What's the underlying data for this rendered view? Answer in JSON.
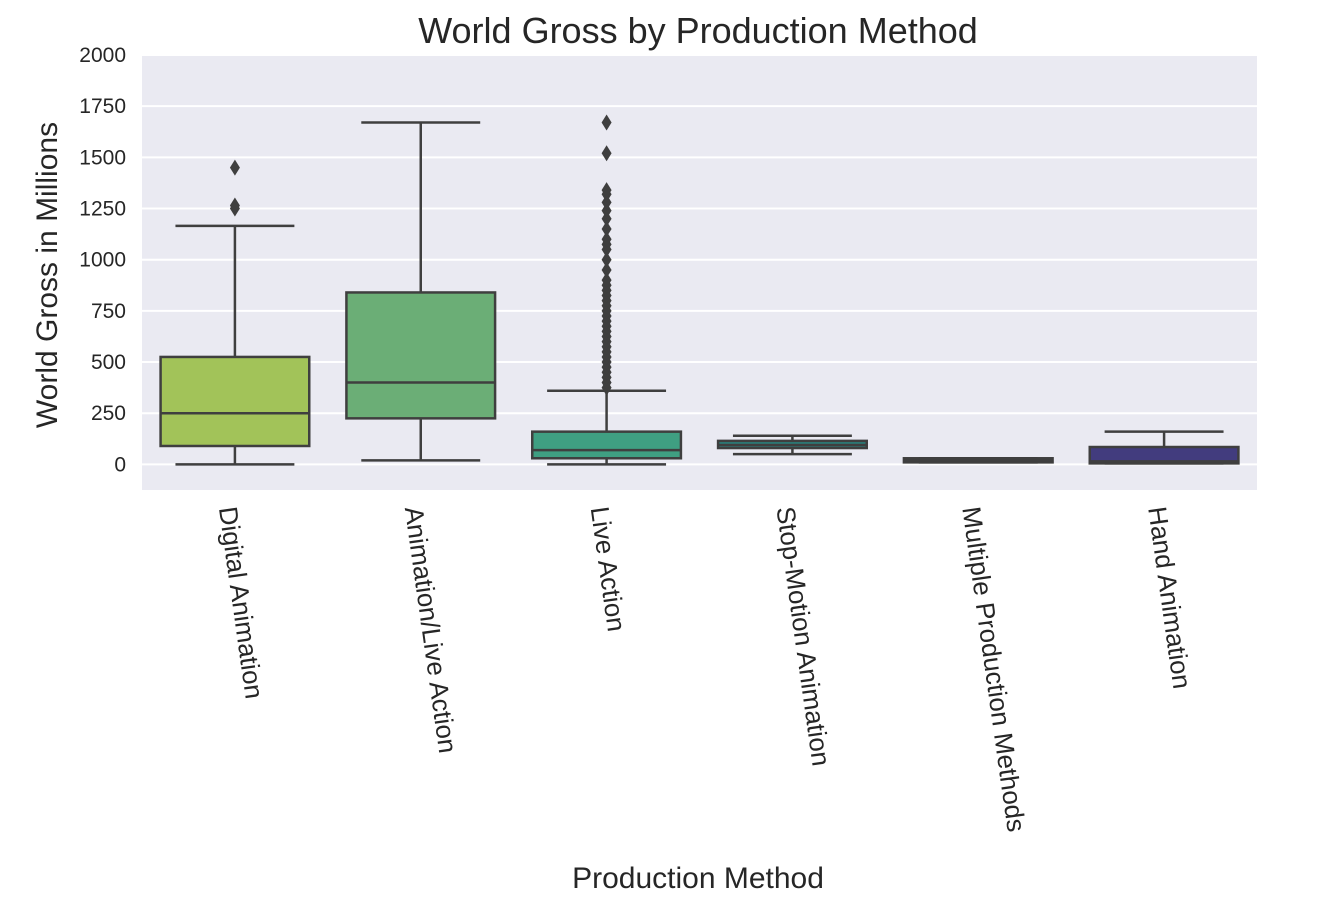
{
  "chart_data": {
    "type": "box",
    "title": "World Gross by Production Method",
    "xlabel": "Production Method",
    "ylabel": "World Gross in Millions",
    "ylim": [
      -125,
      2000
    ],
    "yticks": [
      0,
      250,
      500,
      750,
      1000,
      1250,
      1500,
      1750,
      2000
    ],
    "grid": true,
    "legend": "none",
    "background": "#EAEAF2",
    "line_color": "#3F3F3F",
    "categories": [
      "Digital Animation",
      "Animation/Live Action",
      "Live Action",
      "Stop-Motion Animation",
      "Multiple Production Methods",
      "Hand Animation"
    ],
    "boxes": [
      {
        "category": "Digital Animation",
        "color": "#A2C359",
        "whisker_low": 0,
        "q1": 90,
        "median": 250,
        "q3": 525,
        "whisker_high": 1165,
        "outliers": [
          1250,
          1265,
          1450
        ]
      },
      {
        "category": "Animation/Live Action",
        "color": "#6BAE76",
        "whisker_low": 20,
        "q1": 225,
        "median": 400,
        "q3": 840,
        "whisker_high": 1670,
        "outliers": []
      },
      {
        "category": "Live Action",
        "color": "#3F9F82",
        "whisker_low": 0,
        "q1": 30,
        "median": 70,
        "q3": 160,
        "whisker_high": 360,
        "outliers": [
          375,
          400,
          425,
          450,
          475,
          500,
          525,
          550,
          575,
          600,
          625,
          650,
          675,
          700,
          725,
          750,
          775,
          800,
          825,
          850,
          875,
          900,
          950,
          1000,
          1050,
          1075,
          1100,
          1150,
          1200,
          1240,
          1280,
          1320,
          1340,
          1520,
          1670
        ]
      },
      {
        "category": "Stop-Motion Animation",
        "color": "#2A7E7A",
        "whisker_low": 50,
        "q1": 80,
        "median": 95,
        "q3": 115,
        "whisker_high": 140,
        "outliers": []
      },
      {
        "category": "Multiple Production Methods",
        "color": "#2E5C7F",
        "whisker_low": 10,
        "q1": 10,
        "median": 20,
        "q3": 30,
        "whisker_high": 30,
        "outliers": []
      },
      {
        "category": "Hand Animation",
        "color": "#423C7E",
        "whisker_low": 5,
        "q1": 5,
        "median": 15,
        "q3": 85,
        "whisker_high": 160,
        "outliers": []
      }
    ]
  }
}
